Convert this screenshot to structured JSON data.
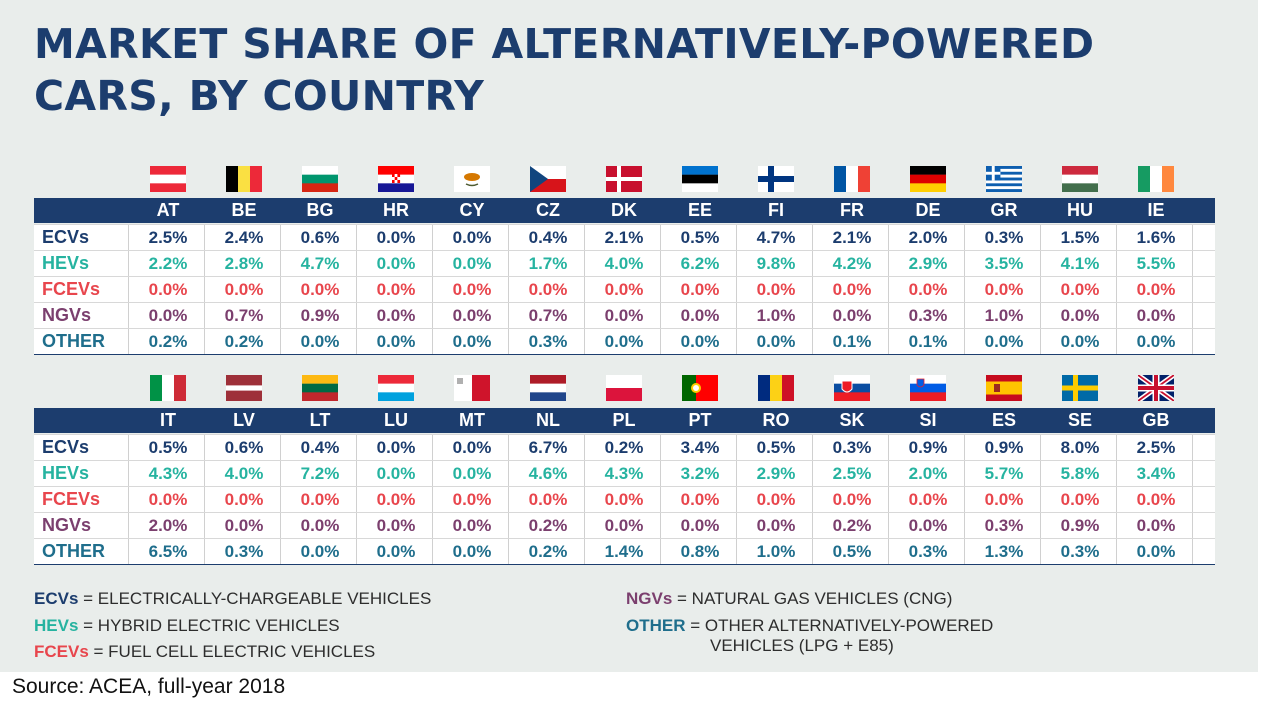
{
  "title_lines": [
    "MARKET SHARE OF ALTERNATIVELY-POWERED",
    "CARS, BY COUNTRY"
  ],
  "colors": {
    "ECVs": "#1c3d6e",
    "HEVs": "#26b3a0",
    "FCEVs": "#e8464d",
    "NGVs": "#7b3f6e",
    "OTHER": "#1f6e8c",
    "header_bg": "#1c3d6e",
    "panel_bg": "#e9edeb"
  },
  "chart_data": [
    {
      "type": "table",
      "columns": [
        "AT",
        "BE",
        "BG",
        "HR",
        "CY",
        "CZ",
        "DK",
        "EE",
        "FI",
        "FR",
        "DE",
        "GR",
        "HU",
        "IE"
      ],
      "rows": [
        {
          "name": "ECVs",
          "values": [
            "2.5%",
            "2.4%",
            "0.6%",
            "0.0%",
            "0.0%",
            "0.4%",
            "2.1%",
            "0.5%",
            "4.7%",
            "2.1%",
            "2.0%",
            "0.3%",
            "1.5%",
            "1.6%"
          ]
        },
        {
          "name": "HEVs",
          "values": [
            "2.2%",
            "2.8%",
            "4.7%",
            "0.0%",
            "0.0%",
            "1.7%",
            "4.0%",
            "6.2%",
            "9.8%",
            "4.2%",
            "2.9%",
            "3.5%",
            "4.1%",
            "5.5%"
          ]
        },
        {
          "name": "FCEVs",
          "values": [
            "0.0%",
            "0.0%",
            "0.0%",
            "0.0%",
            "0.0%",
            "0.0%",
            "0.0%",
            "0.0%",
            "0.0%",
            "0.0%",
            "0.0%",
            "0.0%",
            "0.0%",
            "0.0%"
          ]
        },
        {
          "name": "NGVs",
          "values": [
            "0.0%",
            "0.7%",
            "0.9%",
            "0.0%",
            "0.0%",
            "0.7%",
            "0.0%",
            "0.0%",
            "1.0%",
            "0.0%",
            "0.3%",
            "1.0%",
            "0.0%",
            "0.0%"
          ]
        },
        {
          "name": "OTHER",
          "values": [
            "0.2%",
            "0.2%",
            "0.0%",
            "0.0%",
            "0.0%",
            "0.3%",
            "0.0%",
            "0.0%",
            "0.0%",
            "0.1%",
            "0.1%",
            "0.0%",
            "0.0%",
            "0.0%"
          ]
        }
      ]
    },
    {
      "type": "table",
      "columns": [
        "IT",
        "LV",
        "LT",
        "LU",
        "MT",
        "NL",
        "PL",
        "PT",
        "RO",
        "SK",
        "SI",
        "ES",
        "SE",
        "GB"
      ],
      "rows": [
        {
          "name": "ECVs",
          "values": [
            "0.5%",
            "0.6%",
            "0.4%",
            "0.0%",
            "0.0%",
            "6.7%",
            "0.2%",
            "3.4%",
            "0.5%",
            "0.3%",
            "0.9%",
            "0.9%",
            "8.0%",
            "2.5%"
          ]
        },
        {
          "name": "HEVs",
          "values": [
            "4.3%",
            "4.0%",
            "7.2%",
            "0.0%",
            "0.0%",
            "4.6%",
            "4.3%",
            "3.2%",
            "2.9%",
            "2.5%",
            "2.0%",
            "5.7%",
            "5.8%",
            "3.4%"
          ]
        },
        {
          "name": "FCEVs",
          "values": [
            "0.0%",
            "0.0%",
            "0.0%",
            "0.0%",
            "0.0%",
            "0.0%",
            "0.0%",
            "0.0%",
            "0.0%",
            "0.0%",
            "0.0%",
            "0.0%",
            "0.0%",
            "0.0%"
          ]
        },
        {
          "name": "NGVs",
          "values": [
            "2.0%",
            "0.0%",
            "0.0%",
            "0.0%",
            "0.0%",
            "0.2%",
            "0.0%",
            "0.0%",
            "0.0%",
            "0.2%",
            "0.0%",
            "0.3%",
            "0.9%",
            "0.0%"
          ]
        },
        {
          "name": "OTHER",
          "values": [
            "6.5%",
            "0.3%",
            "0.0%",
            "0.0%",
            "0.0%",
            "0.2%",
            "1.4%",
            "0.8%",
            "1.0%",
            "0.5%",
            "0.3%",
            "1.3%",
            "0.3%",
            "0.0%"
          ]
        }
      ]
    }
  ],
  "legend": [
    {
      "abbr": "ECVs",
      "def": " = ELECTRICALLY-CHARGEABLE VEHICLES"
    },
    {
      "abbr": "HEVs",
      "def": " = HYBRID ELECTRIC VEHICLES"
    },
    {
      "abbr": "FCEVs",
      "def": " = FUEL CELL ELECTRIC VEHICLES"
    },
    {
      "abbr": "NGVs",
      "def": " = NATURAL GAS VEHICLES (CNG)"
    },
    {
      "abbr": "OTHER",
      "def": " = OTHER ALTERNATIVELY-POWERED",
      "def2": "VEHICLES (LPG + E85)"
    }
  ],
  "source": "Source: ACEA, full-year 2018"
}
